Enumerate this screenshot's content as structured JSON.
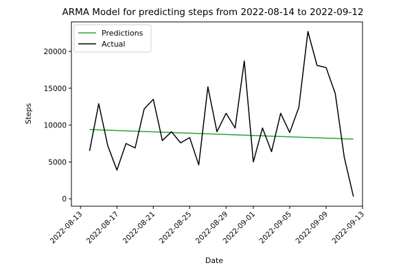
{
  "chart_data": {
    "type": "line",
    "title": "ARMA Model for predicting steps from 2022-08-14 to 2022-09-12",
    "xlabel": "Date",
    "ylabel": "Steps",
    "xlim": [
      "2022-08-12",
      "2022-09-13"
    ],
    "ylim": [
      -1000,
      24000
    ],
    "x_ticks": [
      "2022-08-13",
      "2022-08-17",
      "2022-08-21",
      "2022-08-25",
      "2022-08-29",
      "2022-09-01",
      "2022-09-05",
      "2022-09-09",
      "2022-09-13"
    ],
    "y_ticks": [
      0,
      5000,
      10000,
      15000,
      20000
    ],
    "grid": false,
    "legend_position": "top-left",
    "series": [
      {
        "name": "Predictions",
        "color": "#2ca02c",
        "x": [
          "2022-08-14",
          "2022-09-12"
        ],
        "values": [
          9400,
          8100
        ]
      },
      {
        "name": "Actual",
        "color": "#000000",
        "x": [
          "2022-08-14",
          "2022-08-15",
          "2022-08-16",
          "2022-08-17",
          "2022-08-18",
          "2022-08-19",
          "2022-08-20",
          "2022-08-21",
          "2022-08-22",
          "2022-08-23",
          "2022-08-24",
          "2022-08-25",
          "2022-08-26",
          "2022-08-27",
          "2022-08-28",
          "2022-08-29",
          "2022-08-30",
          "2022-08-31",
          "2022-09-01",
          "2022-09-02",
          "2022-09-03",
          "2022-09-04",
          "2022-09-05",
          "2022-09-06",
          "2022-09-07",
          "2022-09-08",
          "2022-09-09",
          "2022-09-10",
          "2022-09-11",
          "2022-09-12"
        ],
        "values": [
          6500,
          12900,
          7200,
          3900,
          7500,
          6900,
          12200,
          13500,
          7900,
          9100,
          7600,
          8300,
          4600,
          15200,
          9100,
          11600,
          9600,
          18700,
          5000,
          9600,
          6400,
          11600,
          9000,
          12400,
          22700,
          18100,
          17800,
          14300,
          5600,
          300
        ]
      }
    ]
  }
}
